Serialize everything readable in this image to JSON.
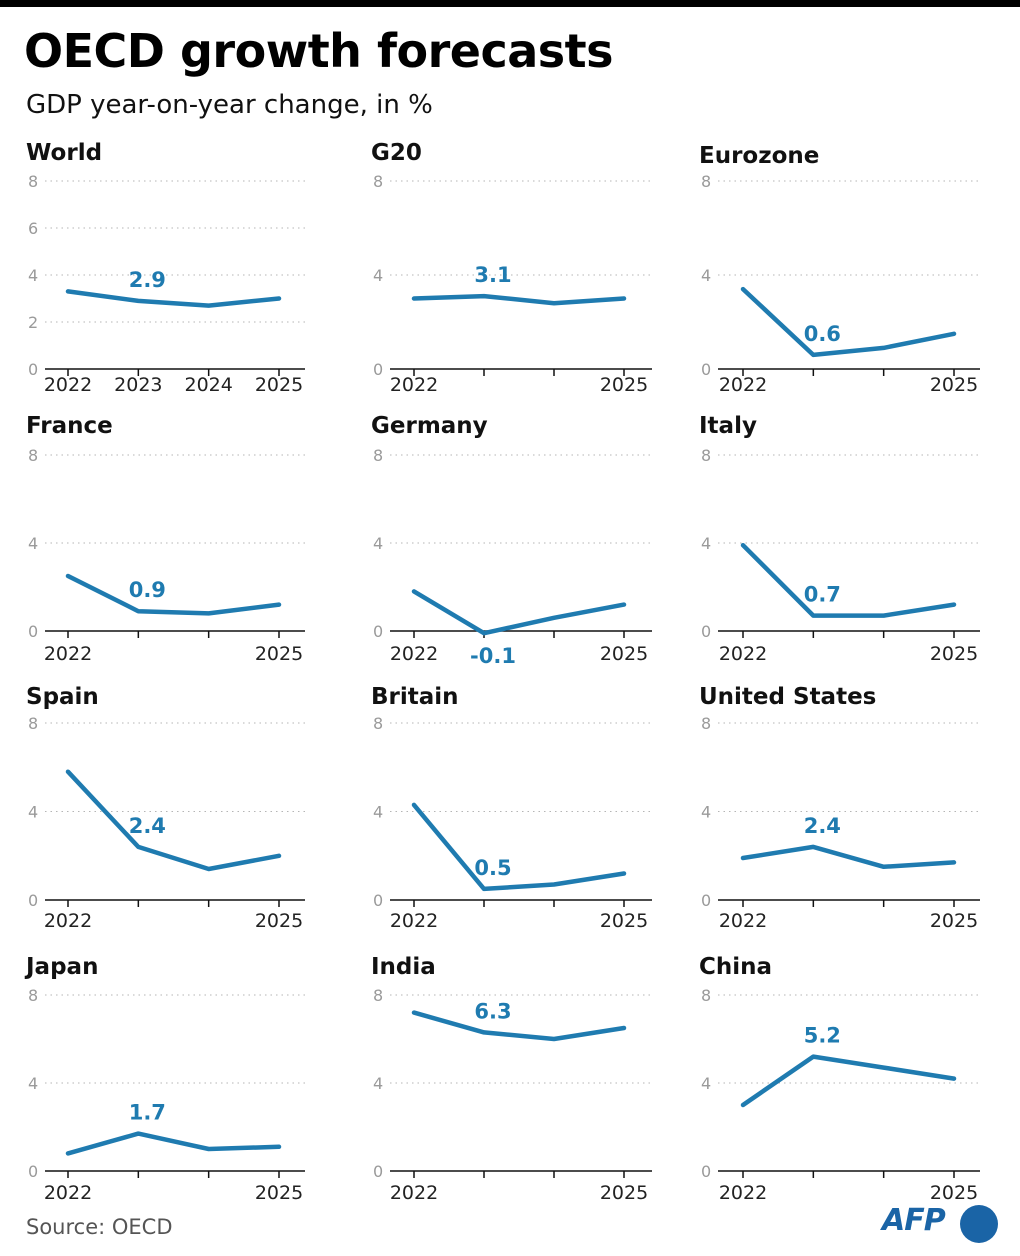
{
  "header": {
    "title": "OECD growth forecasts",
    "subtitle": "GDP year-on-year change, in %"
  },
  "footer": {
    "source": "Source: OECD",
    "logo_text": "AFP"
  },
  "colors": {
    "line": "#1f7bb0",
    "label": "#1f7bb0",
    "grid": "#b5b5b5",
    "tick": "#9a9a9a",
    "axis": "#111111"
  },
  "chart_data": [
    {
      "type": "line",
      "title": "World",
      "x": [
        "2022",
        "2023",
        "2024",
        "2025"
      ],
      "x_tick_labels": [
        "2022",
        "2023",
        "2024",
        "2025"
      ],
      "y": [
        3.3,
        2.9,
        2.7,
        3.0
      ],
      "ylim": [
        0,
        8
      ],
      "y_ticks": [
        0,
        2,
        4,
        6,
        8
      ],
      "label": "2.9",
      "label_index": 1,
      "grid": true
    },
    {
      "type": "line",
      "title": "G20",
      "x": [
        "2022",
        "2023",
        "2024",
        "2025"
      ],
      "x_tick_labels": [
        "2022",
        "",
        "",
        "2025"
      ],
      "y": [
        3.0,
        3.1,
        2.8,
        3.0
      ],
      "ylim": [
        0,
        8
      ],
      "y_ticks": [
        0,
        4,
        8
      ],
      "label": "3.1",
      "label_index": 1,
      "grid": true
    },
    {
      "type": "line",
      "title": "Eurozone",
      "x": [
        "2022",
        "2023",
        "2024",
        "2025"
      ],
      "x_tick_labels": [
        "2022",
        "",
        "",
        "2025"
      ],
      "y": [
        3.4,
        0.6,
        0.9,
        1.5
      ],
      "ylim": [
        0,
        8
      ],
      "y_ticks": [
        0,
        4,
        8
      ],
      "label": "0.6",
      "label_index": 1,
      "grid": true
    },
    {
      "type": "line",
      "title": "France",
      "x": [
        "2022",
        "2023",
        "2024",
        "2025"
      ],
      "x_tick_labels": [
        "2022",
        "",
        "",
        "2025"
      ],
      "y": [
        2.5,
        0.9,
        0.8,
        1.2
      ],
      "ylim": [
        0,
        8
      ],
      "y_ticks": [
        0,
        4,
        8
      ],
      "label": "0.9",
      "label_index": 1,
      "grid": true
    },
    {
      "type": "line",
      "title": "Germany",
      "x": [
        "2022",
        "2023",
        "2024",
        "2025"
      ],
      "x_tick_labels": [
        "2022",
        "",
        "",
        "2025"
      ],
      "y": [
        1.8,
        -0.1,
        0.6,
        1.2
      ],
      "ylim": [
        0,
        8
      ],
      "y_ticks": [
        0,
        4,
        8
      ],
      "label": "-0.1",
      "label_index": 1,
      "label_below": true,
      "grid": true
    },
    {
      "type": "line",
      "title": "Italy",
      "x": [
        "2022",
        "2023",
        "2024",
        "2025"
      ],
      "x_tick_labels": [
        "2022",
        "",
        "",
        "2025"
      ],
      "y": [
        3.9,
        0.7,
        0.7,
        1.2
      ],
      "ylim": [
        0,
        8
      ],
      "y_ticks": [
        0,
        4,
        8
      ],
      "label": "0.7",
      "label_index": 1,
      "grid": true
    },
    {
      "type": "line",
      "title": "Spain",
      "x": [
        "2022",
        "2023",
        "2024",
        "2025"
      ],
      "x_tick_labels": [
        "2022",
        "",
        "",
        "2025"
      ],
      "y": [
        5.8,
        2.4,
        1.4,
        2.0
      ],
      "ylim": [
        0,
        8
      ],
      "y_ticks": [
        0,
        4,
        8
      ],
      "label": "2.4",
      "label_index": 1,
      "grid": true
    },
    {
      "type": "line",
      "title": "Britain",
      "x": [
        "2022",
        "2023",
        "2024",
        "2025"
      ],
      "x_tick_labels": [
        "2022",
        "",
        "",
        "2025"
      ],
      "y": [
        4.3,
        0.5,
        0.7,
        1.2
      ],
      "ylim": [
        0,
        8
      ],
      "y_ticks": [
        0,
        4,
        8
      ],
      "label": "0.5",
      "label_index": 1,
      "grid": true
    },
    {
      "type": "line",
      "title": "United States",
      "x": [
        "2022",
        "2023",
        "2024",
        "2025"
      ],
      "x_tick_labels": [
        "2022",
        "",
        "",
        "2025"
      ],
      "y": [
        1.9,
        2.4,
        1.5,
        1.7
      ],
      "ylim": [
        0,
        8
      ],
      "y_ticks": [
        0,
        4,
        8
      ],
      "label": "2.4",
      "label_index": 1,
      "grid": true
    },
    {
      "type": "line",
      "title": "Japan",
      "x": [
        "2022",
        "2023",
        "2024",
        "2025"
      ],
      "x_tick_labels": [
        "2022",
        "",
        "",
        "2025"
      ],
      "y": [
        0.8,
        1.7,
        1.0,
        1.1
      ],
      "ylim": [
        0,
        8
      ],
      "y_ticks": [
        0,
        4,
        8
      ],
      "label": "1.7",
      "label_index": 1,
      "grid": true
    },
    {
      "type": "line",
      "title": "India",
      "x": [
        "2022",
        "2023",
        "2024",
        "2025"
      ],
      "x_tick_labels": [
        "2022",
        "",
        "",
        "2025"
      ],
      "y": [
        7.2,
        6.3,
        6.0,
        6.5
      ],
      "ylim": [
        0,
        8
      ],
      "y_ticks": [
        0,
        4,
        8
      ],
      "label": "6.3",
      "label_index": 1,
      "grid": true
    },
    {
      "type": "line",
      "title": "China",
      "x": [
        "2022",
        "2023",
        "2024",
        "2025"
      ],
      "x_tick_labels": [
        "2022",
        "",
        "",
        "2025"
      ],
      "y": [
        3.0,
        5.2,
        4.7,
        4.2
      ],
      "ylim": [
        0,
        8
      ],
      "y_ticks": [
        0,
        4,
        8
      ],
      "label": "5.2",
      "label_index": 1,
      "grid": true
    }
  ]
}
